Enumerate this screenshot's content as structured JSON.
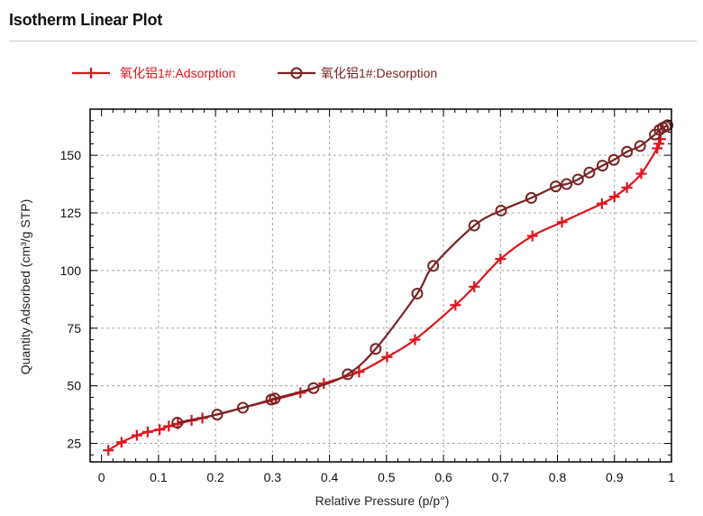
{
  "page": {
    "title": "Isotherm Linear Plot"
  },
  "chart_data": {
    "type": "line",
    "title": "",
    "xlabel": "Relative Pressure (p/p°)",
    "ylabel": "Quantity Adsorbed (cm³/g STP)",
    "xlim": [
      -0.02,
      1.0
    ],
    "ylim": [
      17,
      170
    ],
    "xticks": [
      0,
      0.1,
      0.2,
      0.3,
      0.4,
      0.5,
      0.6,
      0.7,
      0.8,
      0.9,
      1
    ],
    "xtick_labels": [
      "0",
      "0.1",
      "0.2",
      "0.3",
      "0.4",
      "0.5",
      "0.6",
      "0.7",
      "0.8",
      "0.9",
      "1"
    ],
    "yticks": [
      25,
      50,
      75,
      100,
      125,
      150
    ],
    "ytick_labels": [
      "25",
      "50",
      "75",
      "100",
      "125",
      "150"
    ],
    "grid": true,
    "legend_position": "top-left",
    "series": [
      {
        "name": "氧化铝1#:Adsorption",
        "color": "#e0141c",
        "marker": "plus",
        "x": [
          0.012,
          0.035,
          0.062,
          0.081,
          0.102,
          0.118,
          0.134,
          0.158,
          0.177,
          0.349,
          0.39,
          0.452,
          0.501,
          0.55,
          0.621,
          0.654,
          0.7,
          0.756,
          0.808,
          0.878,
          0.9,
          0.922,
          0.947,
          0.975,
          0.978,
          0.981
        ],
        "y": [
          22,
          25.5,
          28.5,
          30,
          31,
          32.5,
          33.5,
          35,
          36,
          47,
          51,
          56,
          62.5,
          70,
          85,
          93,
          105,
          115,
          121,
          129,
          132,
          136,
          142,
          153,
          155,
          157
        ]
      },
      {
        "name": "氧化铝1#:Desorption",
        "color": "#7a2323",
        "marker": "circle",
        "x": [
          0.993,
          0.99,
          0.985,
          0.979,
          0.971,
          0.945,
          0.922,
          0.899,
          0.879,
          0.856,
          0.836,
          0.816,
          0.797,
          0.754,
          0.701,
          0.654,
          0.582,
          0.554,
          0.481,
          0.432,
          0.372,
          0.304,
          0.298,
          0.248,
          0.203,
          0.133
        ],
        "y": [
          163,
          162.5,
          162,
          161,
          159,
          154,
          151.5,
          148,
          145.5,
          142.5,
          139.5,
          137.5,
          136.5,
          131.5,
          126,
          119.5,
          102,
          90,
          66,
          55,
          49,
          44.5,
          44,
          40.5,
          37.5,
          34
        ]
      }
    ]
  }
}
